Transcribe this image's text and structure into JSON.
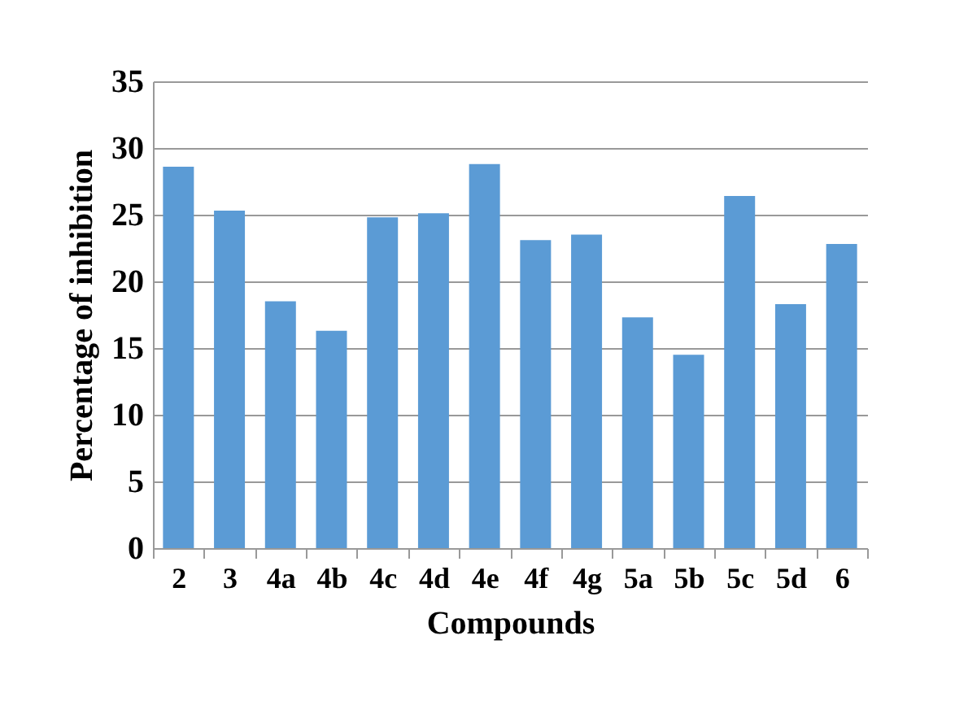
{
  "chart_data": {
    "type": "bar",
    "xlabel": "Compounds",
    "ylabel": "Percentage of inhibition",
    "categories": [
      "2",
      "3",
      "4a",
      "4b",
      "4c",
      "4d",
      "4e",
      "4f",
      "4g",
      "5a",
      "5b",
      "5c",
      "5d",
      "6"
    ],
    "values": [
      28.6,
      25.3,
      18.5,
      16.3,
      24.8,
      25.1,
      28.8,
      23.1,
      23.5,
      17.3,
      14.5,
      26.4,
      18.3,
      22.8
    ],
    "color": "#5b9bd5",
    "ylim": [
      0,
      35
    ],
    "yticks": [
      0,
      5,
      10,
      15,
      20,
      25,
      30,
      35
    ],
    "grid": "y"
  }
}
